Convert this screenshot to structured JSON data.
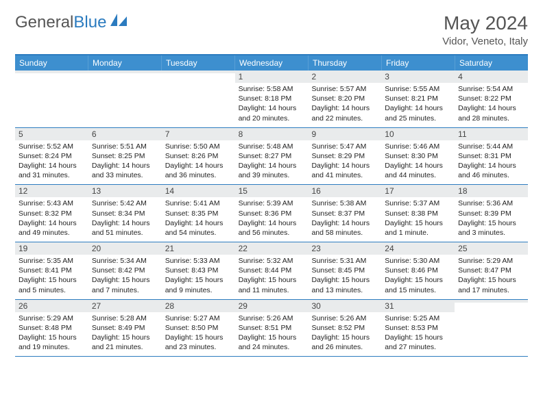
{
  "brand": {
    "part1": "General",
    "part2": "Blue"
  },
  "title": "May 2024",
  "location": "Vidor, Veneto, Italy",
  "colors": {
    "header_bar": "#3d8fcf",
    "accent_line": "#2b7bbf",
    "daynum_bg": "#e9ebec",
    "text": "#222222",
    "muted": "#555555",
    "bg": "#ffffff"
  },
  "typography": {
    "title_fontsize": 28,
    "location_fontsize": 15,
    "header_fontsize": 12,
    "cell_fontsize": 10.5
  },
  "day_names": [
    "Sunday",
    "Monday",
    "Tuesday",
    "Wednesday",
    "Thursday",
    "Friday",
    "Saturday"
  ],
  "weeks": [
    [
      {
        "day": "",
        "sunrise": "",
        "sunset": "",
        "daylight1": "",
        "daylight2": ""
      },
      {
        "day": "",
        "sunrise": "",
        "sunset": "",
        "daylight1": "",
        "daylight2": ""
      },
      {
        "day": "",
        "sunrise": "",
        "sunset": "",
        "daylight1": "",
        "daylight2": ""
      },
      {
        "day": "1",
        "sunrise": "Sunrise: 5:58 AM",
        "sunset": "Sunset: 8:18 PM",
        "daylight1": "Daylight: 14 hours",
        "daylight2": "and 20 minutes."
      },
      {
        "day": "2",
        "sunrise": "Sunrise: 5:57 AM",
        "sunset": "Sunset: 8:20 PM",
        "daylight1": "Daylight: 14 hours",
        "daylight2": "and 22 minutes."
      },
      {
        "day": "3",
        "sunrise": "Sunrise: 5:55 AM",
        "sunset": "Sunset: 8:21 PM",
        "daylight1": "Daylight: 14 hours",
        "daylight2": "and 25 minutes."
      },
      {
        "day": "4",
        "sunrise": "Sunrise: 5:54 AM",
        "sunset": "Sunset: 8:22 PM",
        "daylight1": "Daylight: 14 hours",
        "daylight2": "and 28 minutes."
      }
    ],
    [
      {
        "day": "5",
        "sunrise": "Sunrise: 5:52 AM",
        "sunset": "Sunset: 8:24 PM",
        "daylight1": "Daylight: 14 hours",
        "daylight2": "and 31 minutes."
      },
      {
        "day": "6",
        "sunrise": "Sunrise: 5:51 AM",
        "sunset": "Sunset: 8:25 PM",
        "daylight1": "Daylight: 14 hours",
        "daylight2": "and 33 minutes."
      },
      {
        "day": "7",
        "sunrise": "Sunrise: 5:50 AM",
        "sunset": "Sunset: 8:26 PM",
        "daylight1": "Daylight: 14 hours",
        "daylight2": "and 36 minutes."
      },
      {
        "day": "8",
        "sunrise": "Sunrise: 5:48 AM",
        "sunset": "Sunset: 8:27 PM",
        "daylight1": "Daylight: 14 hours",
        "daylight2": "and 39 minutes."
      },
      {
        "day": "9",
        "sunrise": "Sunrise: 5:47 AM",
        "sunset": "Sunset: 8:29 PM",
        "daylight1": "Daylight: 14 hours",
        "daylight2": "and 41 minutes."
      },
      {
        "day": "10",
        "sunrise": "Sunrise: 5:46 AM",
        "sunset": "Sunset: 8:30 PM",
        "daylight1": "Daylight: 14 hours",
        "daylight2": "and 44 minutes."
      },
      {
        "day": "11",
        "sunrise": "Sunrise: 5:44 AM",
        "sunset": "Sunset: 8:31 PM",
        "daylight1": "Daylight: 14 hours",
        "daylight2": "and 46 minutes."
      }
    ],
    [
      {
        "day": "12",
        "sunrise": "Sunrise: 5:43 AM",
        "sunset": "Sunset: 8:32 PM",
        "daylight1": "Daylight: 14 hours",
        "daylight2": "and 49 minutes."
      },
      {
        "day": "13",
        "sunrise": "Sunrise: 5:42 AM",
        "sunset": "Sunset: 8:34 PM",
        "daylight1": "Daylight: 14 hours",
        "daylight2": "and 51 minutes."
      },
      {
        "day": "14",
        "sunrise": "Sunrise: 5:41 AM",
        "sunset": "Sunset: 8:35 PM",
        "daylight1": "Daylight: 14 hours",
        "daylight2": "and 54 minutes."
      },
      {
        "day": "15",
        "sunrise": "Sunrise: 5:39 AM",
        "sunset": "Sunset: 8:36 PM",
        "daylight1": "Daylight: 14 hours",
        "daylight2": "and 56 minutes."
      },
      {
        "day": "16",
        "sunrise": "Sunrise: 5:38 AM",
        "sunset": "Sunset: 8:37 PM",
        "daylight1": "Daylight: 14 hours",
        "daylight2": "and 58 minutes."
      },
      {
        "day": "17",
        "sunrise": "Sunrise: 5:37 AM",
        "sunset": "Sunset: 8:38 PM",
        "daylight1": "Daylight: 15 hours",
        "daylight2": "and 1 minute."
      },
      {
        "day": "18",
        "sunrise": "Sunrise: 5:36 AM",
        "sunset": "Sunset: 8:39 PM",
        "daylight1": "Daylight: 15 hours",
        "daylight2": "and 3 minutes."
      }
    ],
    [
      {
        "day": "19",
        "sunrise": "Sunrise: 5:35 AM",
        "sunset": "Sunset: 8:41 PM",
        "daylight1": "Daylight: 15 hours",
        "daylight2": "and 5 minutes."
      },
      {
        "day": "20",
        "sunrise": "Sunrise: 5:34 AM",
        "sunset": "Sunset: 8:42 PM",
        "daylight1": "Daylight: 15 hours",
        "daylight2": "and 7 minutes."
      },
      {
        "day": "21",
        "sunrise": "Sunrise: 5:33 AM",
        "sunset": "Sunset: 8:43 PM",
        "daylight1": "Daylight: 15 hours",
        "daylight2": "and 9 minutes."
      },
      {
        "day": "22",
        "sunrise": "Sunrise: 5:32 AM",
        "sunset": "Sunset: 8:44 PM",
        "daylight1": "Daylight: 15 hours",
        "daylight2": "and 11 minutes."
      },
      {
        "day": "23",
        "sunrise": "Sunrise: 5:31 AM",
        "sunset": "Sunset: 8:45 PM",
        "daylight1": "Daylight: 15 hours",
        "daylight2": "and 13 minutes."
      },
      {
        "day": "24",
        "sunrise": "Sunrise: 5:30 AM",
        "sunset": "Sunset: 8:46 PM",
        "daylight1": "Daylight: 15 hours",
        "daylight2": "and 15 minutes."
      },
      {
        "day": "25",
        "sunrise": "Sunrise: 5:29 AM",
        "sunset": "Sunset: 8:47 PM",
        "daylight1": "Daylight: 15 hours",
        "daylight2": "and 17 minutes."
      }
    ],
    [
      {
        "day": "26",
        "sunrise": "Sunrise: 5:29 AM",
        "sunset": "Sunset: 8:48 PM",
        "daylight1": "Daylight: 15 hours",
        "daylight2": "and 19 minutes."
      },
      {
        "day": "27",
        "sunrise": "Sunrise: 5:28 AM",
        "sunset": "Sunset: 8:49 PM",
        "daylight1": "Daylight: 15 hours",
        "daylight2": "and 21 minutes."
      },
      {
        "day": "28",
        "sunrise": "Sunrise: 5:27 AM",
        "sunset": "Sunset: 8:50 PM",
        "daylight1": "Daylight: 15 hours",
        "daylight2": "and 23 minutes."
      },
      {
        "day": "29",
        "sunrise": "Sunrise: 5:26 AM",
        "sunset": "Sunset: 8:51 PM",
        "daylight1": "Daylight: 15 hours",
        "daylight2": "and 24 minutes."
      },
      {
        "day": "30",
        "sunrise": "Sunrise: 5:26 AM",
        "sunset": "Sunset: 8:52 PM",
        "daylight1": "Daylight: 15 hours",
        "daylight2": "and 26 minutes."
      },
      {
        "day": "31",
        "sunrise": "Sunrise: 5:25 AM",
        "sunset": "Sunset: 8:53 PM",
        "daylight1": "Daylight: 15 hours",
        "daylight2": "and 27 minutes."
      },
      {
        "day": "",
        "sunrise": "",
        "sunset": "",
        "daylight1": "",
        "daylight2": ""
      }
    ]
  ]
}
